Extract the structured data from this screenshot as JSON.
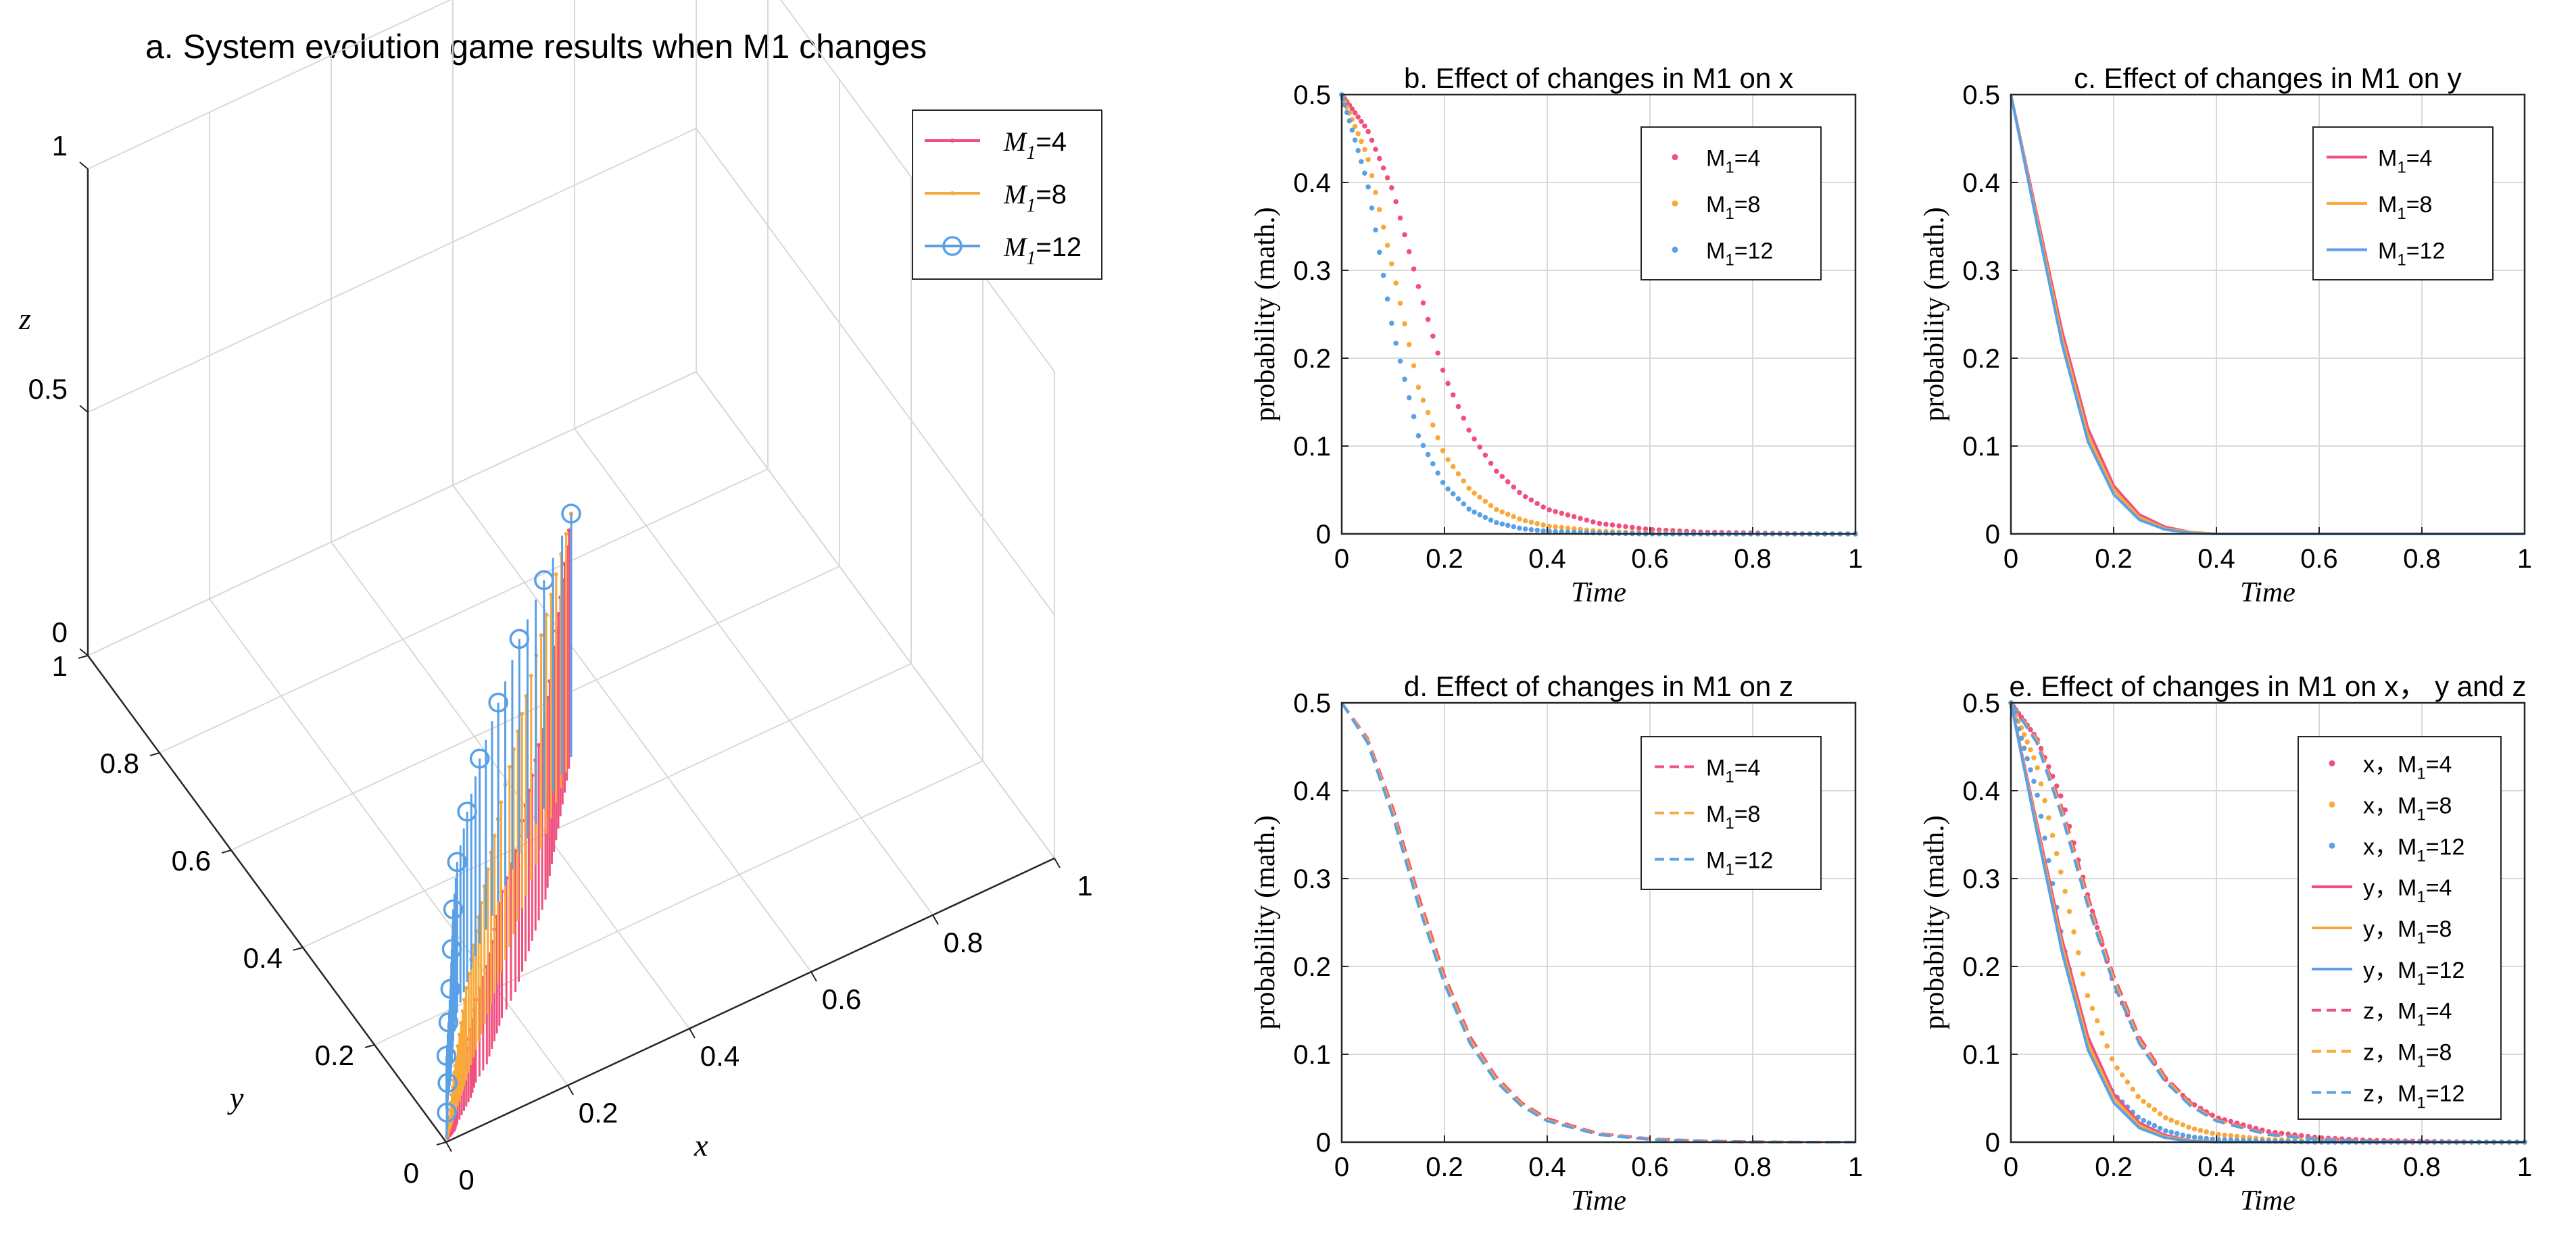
{
  "colors": {
    "pink": "#f0507f",
    "orange": "#f8a93a",
    "blue": "#5aa0e6",
    "grid": "#d9d9d9",
    "axis": "#262626"
  },
  "panel_a": {
    "title": "a. System evolution game results when M1 changes",
    "xlabel": "x",
    "ylabel": "y",
    "zlabel": "z",
    "x_ticks": [
      "0",
      "0.2",
      "0.4",
      "0.6",
      "0.8",
      "1"
    ],
    "y_ticks": [
      "0",
      "0.2",
      "0.4",
      "0.6",
      "0.8",
      "1"
    ],
    "z_ticks": [
      "0",
      "0.5",
      "1"
    ],
    "legend": [
      {
        "label": "M",
        "sub": "1",
        "suffix": "=4"
      },
      {
        "label": "M",
        "sub": "1",
        "suffix": "=8"
      },
      {
        "label": "M",
        "sub": "1",
        "suffix": "=12"
      }
    ]
  },
  "panel_b": {
    "title": "b. Effect of changes in M1 on x",
    "xlabel": "Time",
    "ylabel": "probability (math.)",
    "legend": [
      {
        "label": "M",
        "sub": "1",
        "suffix": "=4"
      },
      {
        "label": "M",
        "sub": "1",
        "suffix": "=8"
      },
      {
        "label": "M",
        "sub": "1",
        "suffix": "=12"
      }
    ]
  },
  "panel_c": {
    "title": "c. Effect of changes in M1 on y",
    "xlabel": "Time",
    "ylabel": "probability (math.)",
    "legend": [
      {
        "label": "M",
        "sub": "1",
        "suffix": "=4"
      },
      {
        "label": "M",
        "sub": "1",
        "suffix": "=8"
      },
      {
        "label": "M",
        "sub": "1",
        "suffix": "=12"
      }
    ]
  },
  "panel_d": {
    "title": "d. Effect of changes in M1 on z",
    "xlabel": "Time",
    "ylabel": "probability (math.)",
    "legend": [
      {
        "label": "M",
        "sub": "1",
        "suffix": "=4"
      },
      {
        "label": "M",
        "sub": "1",
        "suffix": "=8"
      },
      {
        "label": "M",
        "sub": "1",
        "suffix": "=12"
      }
    ]
  },
  "panel_e": {
    "title": "e. Effect of changes in M1 on x， y and z",
    "xlabel": "Time",
    "ylabel": "probability (math.)",
    "legend": [
      {
        "label": "x，M",
        "sub": "1",
        "suffix": "=4"
      },
      {
        "label": "x，M",
        "sub": "1",
        "suffix": "=8"
      },
      {
        "label": "x，M",
        "sub": "1",
        "suffix": "=12"
      },
      {
        "label": "y，M",
        "sub": "1",
        "suffix": "=4"
      },
      {
        "label": "y，M",
        "sub": "1",
        "suffix": "=8"
      },
      {
        "label": "y，M",
        "sub": "1",
        "suffix": "=12"
      },
      {
        "label": "z，M",
        "sub": "1",
        "suffix": "=4"
      },
      {
        "label": "z，M",
        "sub": "1",
        "suffix": "=8"
      },
      {
        "label": "z，M",
        "sub": "1",
        "suffix": "=12"
      }
    ]
  },
  "chart_data": [
    {
      "id": "a",
      "type": "scatter",
      "subtype": "stem3d",
      "title": "a. System evolution game results when M1 changes",
      "xlabel": "x",
      "ylabel": "y",
      "zlabel": "z",
      "xlim": [
        0,
        1
      ],
      "ylim": [
        0,
        1
      ],
      "zlim": [
        0,
        1
      ],
      "grid": true,
      "legend_position": "top-right",
      "series": [
        {
          "name": "M1=4",
          "color": "#f0507f",
          "marker": "dot",
          "x": [
            0.5,
            0.46,
            0.42,
            0.38,
            0.34,
            0.3,
            0.26,
            0.22,
            0.18,
            0.15,
            0.12,
            0.09,
            0.07,
            0.05,
            0.03,
            0.02,
            0.01,
            0.0
          ],
          "y": [
            0.5,
            0.45,
            0.4,
            0.35,
            0.3,
            0.26,
            0.22,
            0.18,
            0.15,
            0.12,
            0.09,
            0.07,
            0.05,
            0.035,
            0.02,
            0.01,
            0.005,
            0.0
          ],
          "z": [
            0.5,
            0.47,
            0.44,
            0.41,
            0.38,
            0.35,
            0.32,
            0.29,
            0.26,
            0.23,
            0.2,
            0.17,
            0.14,
            0.11,
            0.08,
            0.05,
            0.02,
            0.0
          ]
        },
        {
          "name": "M1=8",
          "color": "#f8a93a",
          "marker": "dot",
          "x": [
            0.5,
            0.44,
            0.38,
            0.32,
            0.27,
            0.22,
            0.18,
            0.14,
            0.11,
            0.08,
            0.06,
            0.04,
            0.03,
            0.02,
            0.01,
            0.0
          ],
          "y": [
            0.5,
            0.44,
            0.38,
            0.32,
            0.27,
            0.22,
            0.18,
            0.14,
            0.11,
            0.08,
            0.06,
            0.04,
            0.03,
            0.02,
            0.01,
            0.0
          ],
          "z": [
            0.5,
            0.47,
            0.44,
            0.41,
            0.38,
            0.35,
            0.31,
            0.27,
            0.23,
            0.19,
            0.15,
            0.11,
            0.08,
            0.05,
            0.02,
            0.0
          ]
        },
        {
          "name": "M1=12",
          "color": "#5aa0e6",
          "marker": "circle",
          "x": [
            0.5,
            0.42,
            0.35,
            0.28,
            0.22,
            0.17,
            0.13,
            0.1,
            0.08,
            0.06,
            0.045,
            0.03,
            0.02,
            0.01,
            0.0
          ],
          "y": [
            0.5,
            0.44,
            0.39,
            0.33,
            0.28,
            0.23,
            0.19,
            0.15,
            0.12,
            0.09,
            0.07,
            0.05,
            0.03,
            0.015,
            0.0
          ],
          "z": [
            0.5,
            0.47,
            0.44,
            0.41,
            0.38,
            0.35,
            0.31,
            0.27,
            0.23,
            0.19,
            0.15,
            0.11,
            0.08,
            0.04,
            0.0
          ]
        }
      ]
    },
    {
      "id": "b",
      "type": "scatter",
      "title": "b. Effect of changes in M1 on x",
      "xlabel": "Time",
      "ylabel": "probability (math.)",
      "xlim": [
        0,
        1
      ],
      "ylim": [
        0,
        0.5
      ],
      "xticks": [
        0,
        0.2,
        0.4,
        0.6,
        0.8,
        1
      ],
      "yticks": [
        0,
        0.1,
        0.2,
        0.3,
        0.4,
        0.5
      ],
      "grid": true,
      "legend_position": "top-right",
      "x": [
        0,
        0.05,
        0.1,
        0.15,
        0.2,
        0.25,
        0.3,
        0.35,
        0.4,
        0.5,
        0.6,
        0.7,
        0.8,
        0.9,
        1.0
      ],
      "series": [
        {
          "name": "M1=4",
          "color": "#f0507f",
          "values": [
            0.5,
            0.46,
            0.39,
            0.28,
            0.18,
            0.115,
            0.072,
            0.045,
            0.028,
            0.012,
            0.005,
            0.002,
            0.001,
            0.0,
            0.0
          ]
        },
        {
          "name": "M1=8",
          "color": "#f8a93a",
          "values": [
            0.5,
            0.43,
            0.3,
            0.165,
            0.09,
            0.05,
            0.028,
            0.016,
            0.009,
            0.003,
            0.001,
            0.0,
            0.0,
            0.0,
            0.0
          ]
        },
        {
          "name": "M1=12",
          "color": "#5aa0e6",
          "values": [
            0.5,
            0.4,
            0.23,
            0.11,
            0.055,
            0.027,
            0.013,
            0.006,
            0.003,
            0.001,
            0.0,
            0.0,
            0.0,
            0.0,
            0.0
          ]
        }
      ]
    },
    {
      "id": "c",
      "type": "line",
      "title": "c. Effect of changes in M1 on y",
      "xlabel": "Time",
      "ylabel": "probability (math.)",
      "xlim": [
        0,
        1
      ],
      "ylim": [
        0,
        0.5
      ],
      "xticks": [
        0,
        0.2,
        0.4,
        0.6,
        0.8,
        1
      ],
      "yticks": [
        0,
        0.1,
        0.2,
        0.3,
        0.4,
        0.5
      ],
      "grid": true,
      "legend_position": "top-right",
      "x": [
        0,
        0.05,
        0.1,
        0.15,
        0.2,
        0.25,
        0.3,
        0.35,
        0.4,
        0.5,
        0.6,
        0.8,
        1.0
      ],
      "series": [
        {
          "name": "M1=4",
          "color": "#f0507f",
          "values": [
            0.5,
            0.365,
            0.23,
            0.12,
            0.055,
            0.022,
            0.008,
            0.002,
            0.0,
            0.0,
            0.0,
            0.0,
            0.0
          ]
        },
        {
          "name": "M1=8",
          "color": "#f8a93a",
          "values": [
            0.5,
            0.36,
            0.222,
            0.112,
            0.05,
            0.019,
            0.006,
            0.002,
            0.0,
            0.0,
            0.0,
            0.0,
            0.0
          ]
        },
        {
          "name": "M1=12",
          "color": "#5aa0e6",
          "values": [
            0.5,
            0.355,
            0.215,
            0.105,
            0.045,
            0.016,
            0.005,
            0.001,
            0.0,
            0.0,
            0.0,
            0.0,
            0.0
          ]
        }
      ]
    },
    {
      "id": "d",
      "type": "line",
      "title": "d. Effect of changes in M1 on z",
      "xlabel": "Time",
      "ylabel": "probability (math.)",
      "xlim": [
        0,
        1
      ],
      "ylim": [
        0,
        0.5
      ],
      "xticks": [
        0,
        0.2,
        0.4,
        0.6,
        0.8,
        1
      ],
      "yticks": [
        0,
        0.1,
        0.2,
        0.3,
        0.4,
        0.5
      ],
      "grid": true,
      "legend_position": "top-right",
      "x": [
        0,
        0.05,
        0.1,
        0.15,
        0.2,
        0.25,
        0.3,
        0.35,
        0.4,
        0.5,
        0.6,
        0.7,
        0.8,
        0.9,
        1.0
      ],
      "series": [
        {
          "name": "M1=4",
          "color": "#f0507f",
          "values": [
            0.5,
            0.46,
            0.38,
            0.28,
            0.19,
            0.12,
            0.075,
            0.045,
            0.027,
            0.01,
            0.004,
            0.0015,
            0.0005,
            0.0,
            0.0
          ]
        },
        {
          "name": "M1=8",
          "color": "#f8a93a",
          "values": [
            0.5,
            0.458,
            0.375,
            0.274,
            0.185,
            0.116,
            0.072,
            0.043,
            0.025,
            0.009,
            0.0035,
            0.001,
            0.0,
            0.0,
            0.0
          ]
        },
        {
          "name": "M1=12",
          "color": "#5aa0e6",
          "values": [
            0.5,
            0.455,
            0.37,
            0.268,
            0.18,
            0.112,
            0.069,
            0.041,
            0.024,
            0.0085,
            0.003,
            0.001,
            0.0,
            0.0,
            0.0
          ]
        }
      ]
    },
    {
      "id": "e",
      "type": "line",
      "title": "e. Effect of changes in M1 on x， y and z",
      "xlabel": "Time",
      "ylabel": "probability (math.)",
      "xlim": [
        0,
        1
      ],
      "ylim": [
        0,
        0.5
      ],
      "xticks": [
        0,
        0.2,
        0.4,
        0.6,
        0.8,
        1
      ],
      "yticks": [
        0,
        0.1,
        0.2,
        0.3,
        0.4,
        0.5
      ],
      "grid": true,
      "legend_position": "top-right",
      "x": [
        0,
        0.05,
        0.1,
        0.15,
        0.2,
        0.25,
        0.3,
        0.35,
        0.4,
        0.5,
        0.6,
        0.7,
        0.8,
        0.9,
        1.0
      ],
      "series": [
        {
          "name": "x，M1=4",
          "color": "#f0507f",
          "style": "dots",
          "values": [
            0.5,
            0.46,
            0.39,
            0.28,
            0.18,
            0.115,
            0.072,
            0.045,
            0.028,
            0.012,
            0.005,
            0.002,
            0.001,
            0.0,
            0.0
          ]
        },
        {
          "name": "x，M1=8",
          "color": "#f8a93a",
          "style": "dots",
          "values": [
            0.5,
            0.43,
            0.3,
            0.165,
            0.09,
            0.05,
            0.028,
            0.016,
            0.009,
            0.003,
            0.001,
            0.0,
            0.0,
            0.0,
            0.0
          ]
        },
        {
          "name": "x，M1=12",
          "color": "#5aa0e6",
          "style": "dots",
          "values": [
            0.5,
            0.4,
            0.23,
            0.11,
            0.055,
            0.027,
            0.013,
            0.006,
            0.003,
            0.001,
            0.0,
            0.0,
            0.0,
            0.0,
            0.0
          ]
        },
        {
          "name": "y，M1=4",
          "color": "#f0507f",
          "style": "solid",
          "values": [
            0.5,
            0.365,
            0.23,
            0.12,
            0.055,
            0.022,
            0.008,
            0.002,
            0.0,
            0.0,
            0.0,
            0.0,
            0.0,
            0.0,
            0.0
          ]
        },
        {
          "name": "y，M1=8",
          "color": "#f8a93a",
          "style": "solid",
          "values": [
            0.5,
            0.36,
            0.222,
            0.112,
            0.05,
            0.019,
            0.006,
            0.002,
            0.0,
            0.0,
            0.0,
            0.0,
            0.0,
            0.0,
            0.0
          ]
        },
        {
          "name": "y，M1=12",
          "color": "#5aa0e6",
          "style": "solid",
          "values": [
            0.5,
            0.355,
            0.215,
            0.105,
            0.045,
            0.016,
            0.005,
            0.001,
            0.0,
            0.0,
            0.0,
            0.0,
            0.0,
            0.0,
            0.0
          ]
        },
        {
          "name": "z，M1=4",
          "color": "#f0507f",
          "style": "dashed",
          "values": [
            0.5,
            0.46,
            0.38,
            0.28,
            0.19,
            0.12,
            0.075,
            0.045,
            0.027,
            0.01,
            0.004,
            0.0015,
            0.0005,
            0.0,
            0.0
          ]
        },
        {
          "name": "z，M1=8",
          "color": "#f8a93a",
          "style": "dashed",
          "values": [
            0.5,
            0.458,
            0.375,
            0.274,
            0.185,
            0.116,
            0.072,
            0.043,
            0.025,
            0.009,
            0.0035,
            0.001,
            0.0,
            0.0,
            0.0
          ]
        },
        {
          "name": "z，M1=12",
          "color": "#5aa0e6",
          "style": "dashed",
          "values": [
            0.5,
            0.455,
            0.37,
            0.268,
            0.18,
            0.112,
            0.069,
            0.041,
            0.024,
            0.0085,
            0.003,
            0.001,
            0.0,
            0.0,
            0.0
          ]
        }
      ]
    }
  ]
}
